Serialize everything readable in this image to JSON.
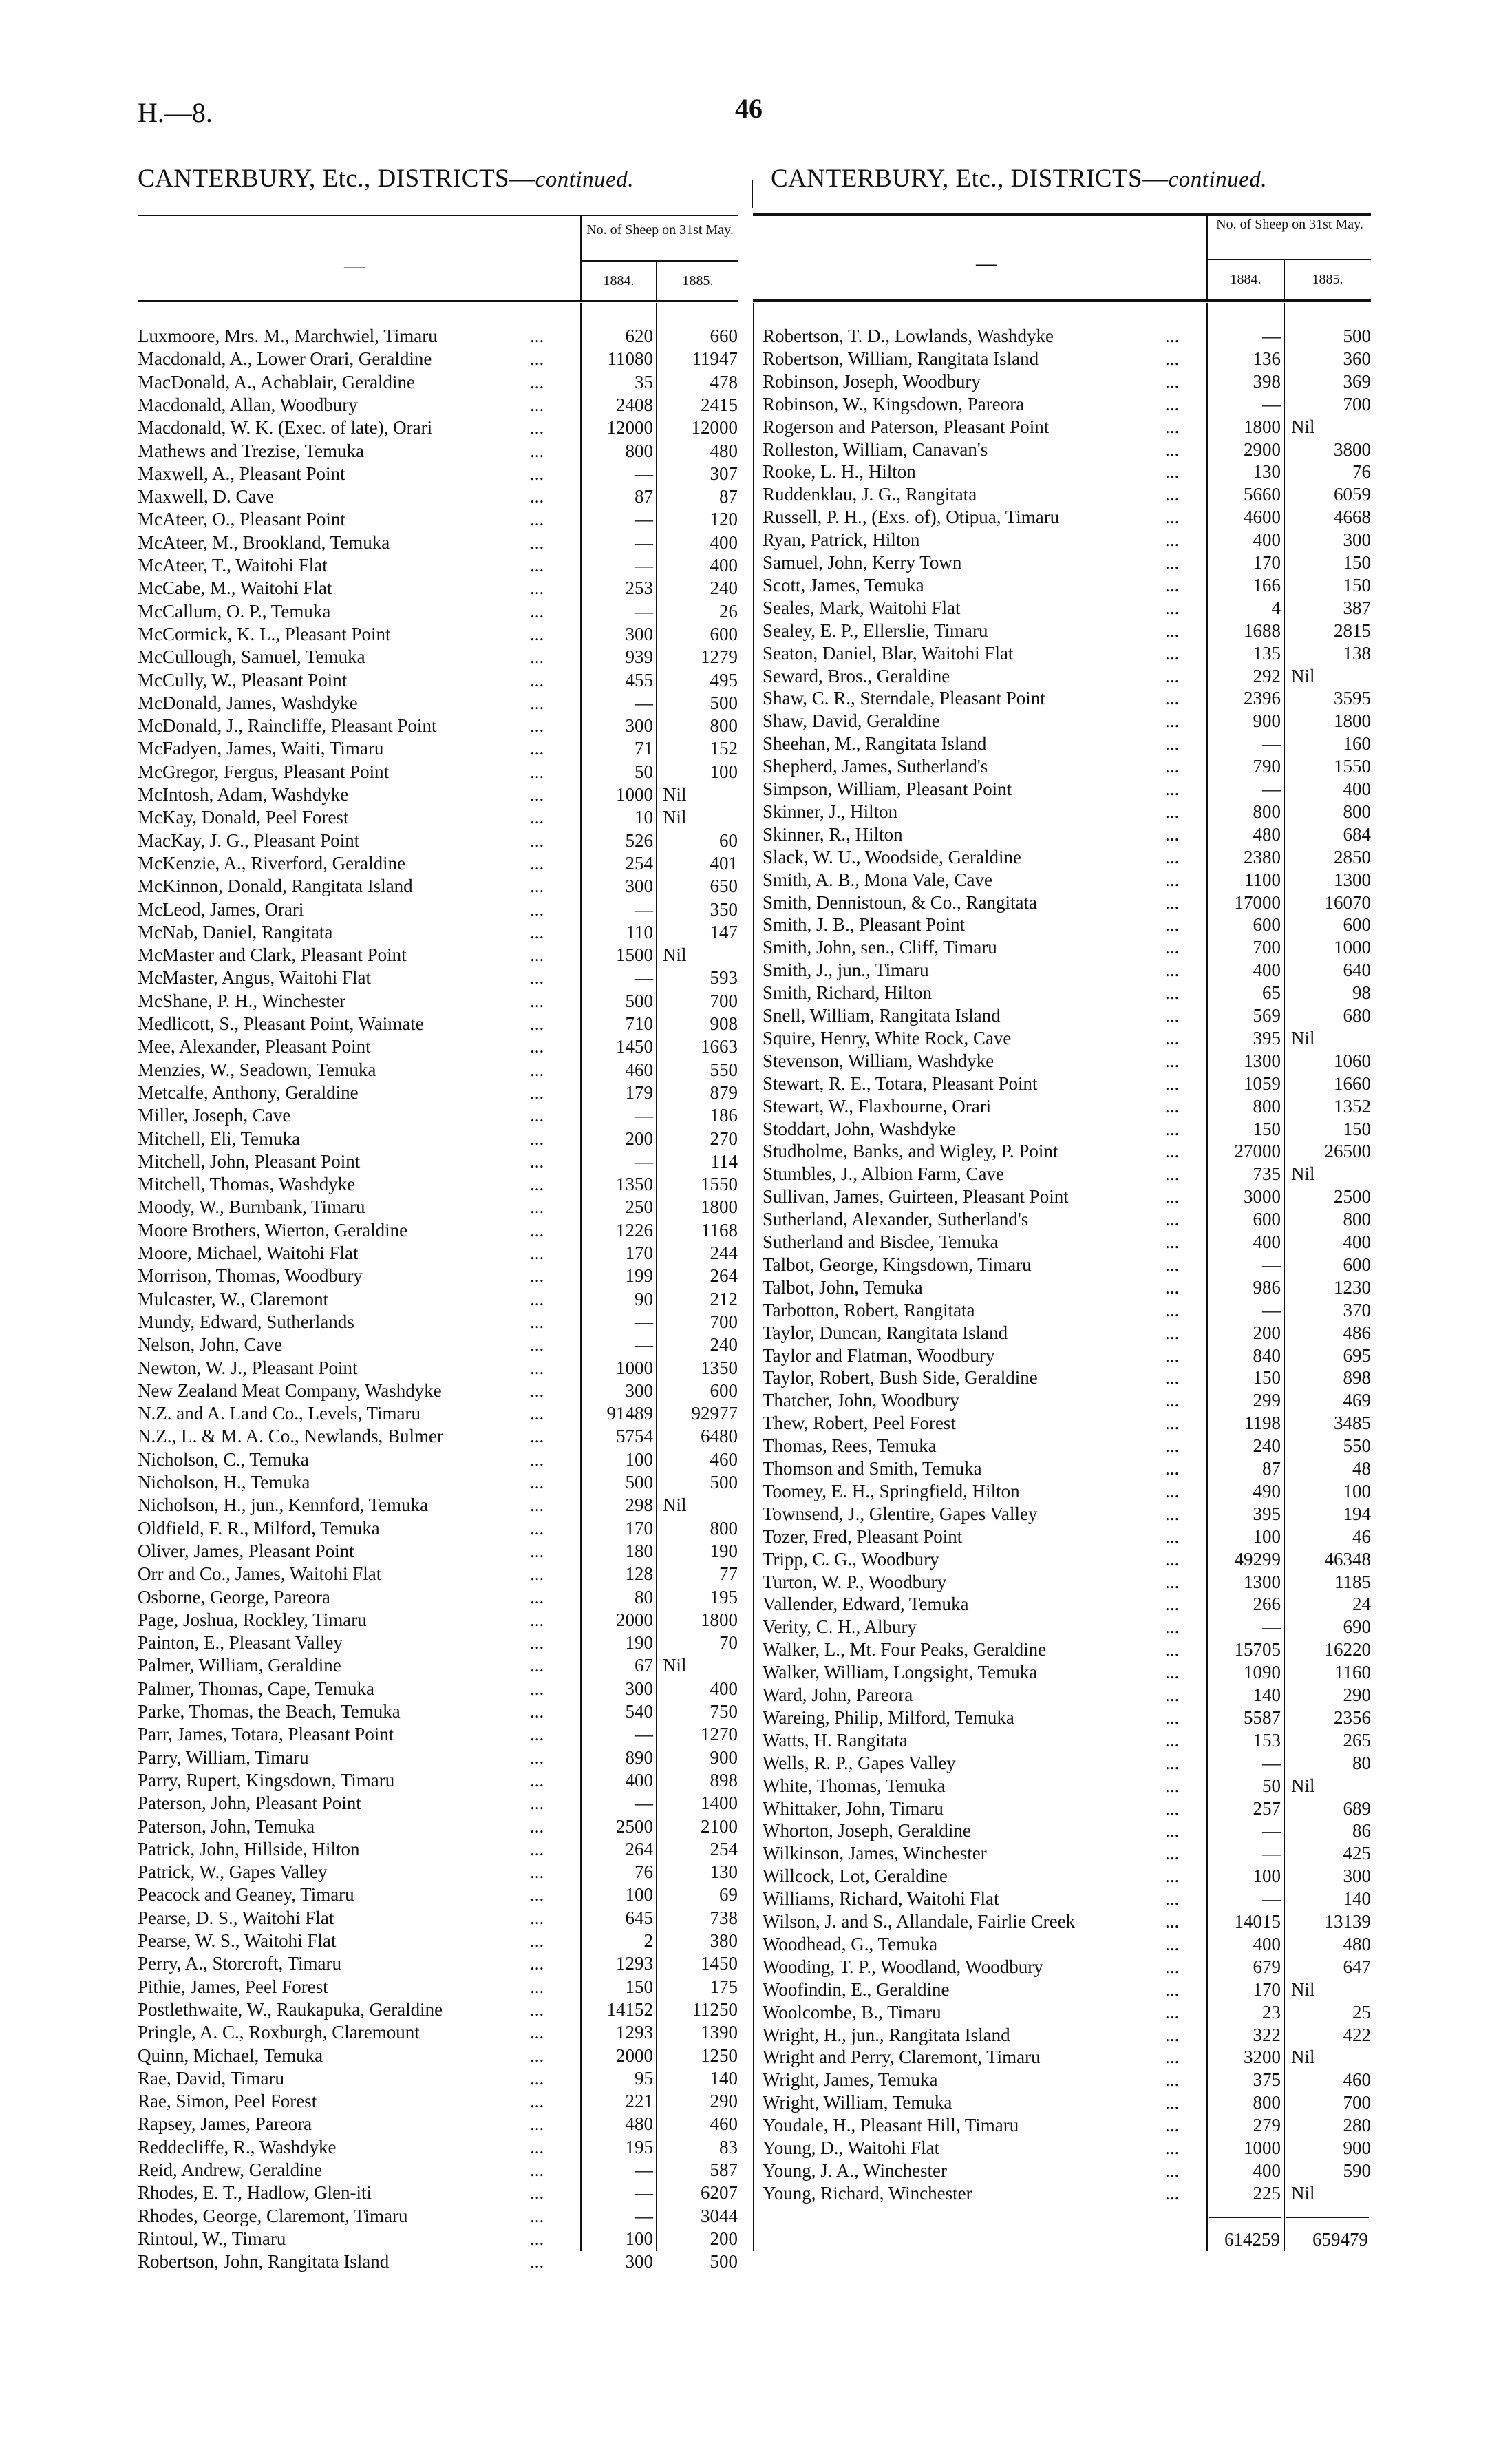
{
  "page": {
    "code": "H.—8.",
    "number": "46"
  },
  "left": {
    "title_main": "CANTERBURY, Etc., DISTRICTS—",
    "title_italic": "continued.",
    "header_blank": "—",
    "header_group": "No. of Sheep on 31st May.",
    "col_1884": "1884.",
    "col_1885": "1885.",
    "leader": "...",
    "rows": [
      [
        "Luxmoore, Mrs. M., Marchwiel, Timaru",
        "620",
        "660"
      ],
      [
        "Macdonald, A., Lower Orari, Geraldine",
        "11080",
        "11947"
      ],
      [
        "MacDonald, A., Achablair, Geraldine",
        "35",
        "478"
      ],
      [
        "Macdonald, Allan, Woodbury",
        "2408",
        "2415"
      ],
      [
        "Macdonald, W. K. (Exec. of late), Orari",
        "12000",
        "12000"
      ],
      [
        "Mathews and Trezise, Temuka",
        "800",
        "480"
      ],
      [
        "Maxwell, A., Pleasant Point",
        "—",
        "307"
      ],
      [
        "Maxwell, D. Cave",
        "87",
        "87"
      ],
      [
        "McAteer, O., Pleasant Point",
        "—",
        "120"
      ],
      [
        "McAteer, M., Brookland, Temuka",
        "—",
        "400"
      ],
      [
        "McAteer, T., Waitohi Flat",
        "—",
        "400"
      ],
      [
        "McCabe, M., Waitohi Flat",
        "253",
        "240"
      ],
      [
        "McCallum, O. P., Temuka",
        "—",
        "26"
      ],
      [
        "McCormick, K. L., Pleasant Point",
        "300",
        "600"
      ],
      [
        "McCullough, Samuel, Temuka",
        "939",
        "1279"
      ],
      [
        "McCully, W., Pleasant Point",
        "455",
        "495"
      ],
      [
        "McDonald, James, Washdyke",
        "—",
        "500"
      ],
      [
        "McDonald, J., Raincliffe, Pleasant Point",
        "300",
        "800"
      ],
      [
        "McFadyen, James, Waiti, Timaru",
        "71",
        "152"
      ],
      [
        "McGregor, Fergus, Pleasant Point",
        "50",
        "100"
      ],
      [
        "McIntosh, Adam, Washdyke",
        "1000",
        "Nil"
      ],
      [
        "McKay, Donald, Peel Forest",
        "10",
        "Nil"
      ],
      [
        "MacKay, J. G., Pleasant Point",
        "526",
        "60"
      ],
      [
        "McKenzie, A., Riverford, Geraldine",
        "254",
        "401"
      ],
      [
        "McKinnon, Donald, Rangitata Island",
        "300",
        "650"
      ],
      [
        "McLeod, James, Orari",
        "—",
        "350"
      ],
      [
        "McNab, Daniel, Rangitata",
        "110",
        "147"
      ],
      [
        "McMaster and Clark, Pleasant Point",
        "1500",
        "Nil"
      ],
      [
        "McMaster, Angus, Waitohi Flat",
        "—",
        "593"
      ],
      [
        "McShane, P. H., Winchester",
        "500",
        "700"
      ],
      [
        "Medlicott, S., Pleasant Point, Waimate",
        "710",
        "908"
      ],
      [
        "Mee, Alexander, Pleasant Point",
        "1450",
        "1663"
      ],
      [
        "Menzies, W., Seadown, Temuka",
        "460",
        "550"
      ],
      [
        "Metcalfe, Anthony, Geraldine",
        "179",
        "879"
      ],
      [
        "Miller, Joseph, Cave",
        "—",
        "186"
      ],
      [
        "Mitchell, Eli, Temuka",
        "200",
        "270"
      ],
      [
        "Mitchell, John, Pleasant Point",
        "—",
        "114"
      ],
      [
        "Mitchell, Thomas, Washdyke",
        "1350",
        "1550"
      ],
      [
        "Moody, W., Burnbank, Timaru",
        "250",
        "1800"
      ],
      [
        "Moore Brothers, Wierton, Geraldine",
        "1226",
        "1168"
      ],
      [
        "Moore, Michael, Waitohi Flat",
        "170",
        "244"
      ],
      [
        "Morrison, Thomas, Woodbury",
        "199",
        "264"
      ],
      [
        "Mulcaster, W., Claremont",
        "90",
        "212"
      ],
      [
        "Mundy, Edward, Sutherlands",
        "—",
        "700"
      ],
      [
        "Nelson, John, Cave",
        "—",
        "240"
      ],
      [
        "Newton, W. J., Pleasant Point",
        "1000",
        "1350"
      ],
      [
        "New Zealand Meat Company, Washdyke",
        "300",
        "600"
      ],
      [
        "N.Z. and A. Land Co., Levels, Timaru",
        "91489",
        "92977"
      ],
      [
        "N.Z., L. & M. A. Co., Newlands, Bulmer",
        "5754",
        "6480"
      ],
      [
        "Nicholson, C., Temuka",
        "100",
        "460"
      ],
      [
        "Nicholson, H., Temuka",
        "500",
        "500"
      ],
      [
        "Nicholson, H., jun., Kennford, Temuka",
        "298",
        "Nil"
      ],
      [
        "Oldfield, F. R., Milford, Temuka",
        "170",
        "800"
      ],
      [
        "Oliver, James, Pleasant Point",
        "180",
        "190"
      ],
      [
        "Orr and Co., James, Waitohi Flat",
        "128",
        "77"
      ],
      [
        "Osborne, George, Pareora",
        "80",
        "195"
      ],
      [
        "Page, Joshua, Rockley, Timaru",
        "2000",
        "1800"
      ],
      [
        "Painton, E., Pleasant Valley",
        "190",
        "70"
      ],
      [
        "Palmer, William, Geraldine",
        "67",
        "Nil"
      ],
      [
        "Palmer, Thomas, Cape, Temuka",
        "300",
        "400"
      ],
      [
        "Parke, Thomas, the Beach, Temuka",
        "540",
        "750"
      ],
      [
        "Parr, James, Totara, Pleasant Point",
        "—",
        "1270"
      ],
      [
        "Parry, William, Timaru",
        "890",
        "900"
      ],
      [
        "Parry, Rupert, Kingsdown, Timaru",
        "400",
        "898"
      ],
      [
        "Paterson, John, Pleasant Point",
        "—",
        "1400"
      ],
      [
        "Paterson, John, Temuka",
        "2500",
        "2100"
      ],
      [
        "Patrick, John, Hillside, Hilton",
        "264",
        "254"
      ],
      [
        "Patrick, W., Gapes Valley",
        "76",
        "130"
      ],
      [
        "Peacock and Geaney, Timaru",
        "100",
        "69"
      ],
      [
        "Pearse, D. S., Waitohi Flat",
        "645",
        "738"
      ],
      [
        "Pearse, W. S., Waitohi Flat",
        "2",
        "380"
      ],
      [
        "Perry, A., Storcroft, Timaru",
        "1293",
        "1450"
      ],
      [
        "Pithie, James, Peel Forest",
        "150",
        "175"
      ],
      [
        "Postlethwaite, W., Raukapuka, Geraldine",
        "14152",
        "11250"
      ],
      [
        "Pringle, A. C., Roxburgh, Claremount",
        "1293",
        "1390"
      ],
      [
        "Quinn, Michael, Temuka",
        "2000",
        "1250"
      ],
      [
        "Rae, David, Timaru",
        "95",
        "140"
      ],
      [
        "Rae, Simon, Peel Forest",
        "221",
        "290"
      ],
      [
        "Rapsey, James, Pareora",
        "480",
        "460"
      ],
      [
        "Reddecliffe, R., Washdyke",
        "195",
        "83"
      ],
      [
        "Reid, Andrew, Geraldine",
        "—",
        "587"
      ],
      [
        "Rhodes, E. T., Hadlow, Glen-iti",
        "—",
        "6207"
      ],
      [
        "Rhodes, George, Claremont, Timaru",
        "—",
        "3044"
      ],
      [
        "Rintoul, W., Timaru",
        "100",
        "200"
      ],
      [
        "Robertson, John, Rangitata Island",
        "300",
        "500"
      ]
    ]
  },
  "right": {
    "title_main": "CANTERBURY, Etc., DISTRICTS—",
    "title_italic": "continued.",
    "header_blank": "—",
    "header_group": "No. of Sheep on 31st May.",
    "col_1884": "1884.",
    "col_1885": "1885.",
    "leader": "...",
    "rows": [
      [
        "Robertson, T. D., Lowlands, Washdyke",
        "—",
        "500"
      ],
      [
        "Robertson, William, Rangitata Island",
        "136",
        "360"
      ],
      [
        "Robinson, Joseph, Woodbury",
        "398",
        "369"
      ],
      [
        "Robinson, W., Kingsdown, Pareora",
        "—",
        "700"
      ],
      [
        "Rogerson and Paterson, Pleasant Point",
        "1800",
        "Nil"
      ],
      [
        "Rolleston, William, Canavan's",
        "2900",
        "3800"
      ],
      [
        "Rooke, L. H., Hilton",
        "130",
        "76"
      ],
      [
        "Ruddenklau, J. G., Rangitata",
        "5660",
        "6059"
      ],
      [
        "Russell, P. H., (Exs. of), Otipua, Timaru",
        "4600",
        "4668"
      ],
      [
        "Ryan, Patrick, Hilton",
        "400",
        "300"
      ],
      [
        "Samuel, John, Kerry Town",
        "170",
        "150"
      ],
      [
        "Scott, James, Temuka",
        "166",
        "150"
      ],
      [
        "Seales, Mark, Waitohi Flat",
        "4",
        "387"
      ],
      [
        "Sealey, E. P., Ellerslie, Timaru",
        "1688",
        "2815"
      ],
      [
        "Seaton, Daniel, Blar, Waitohi Flat",
        "135",
        "138"
      ],
      [
        "Seward, Bros., Geraldine",
        "292",
        "Nil"
      ],
      [
        "Shaw, C. R., Sterndale, Pleasant Point",
        "2396",
        "3595"
      ],
      [
        "Shaw, David, Geraldine",
        "900",
        "1800"
      ],
      [
        "Sheehan, M., Rangitata Island",
        "—",
        "160"
      ],
      [
        "Shepherd, James, Sutherland's",
        "790",
        "1550"
      ],
      [
        "Simpson, William, Pleasant Point",
        "—",
        "400"
      ],
      [
        "Skinner, J., Hilton",
        "800",
        "800"
      ],
      [
        "Skinner, R., Hilton",
        "480",
        "684"
      ],
      [
        "Slack, W. U., Woodside, Geraldine",
        "2380",
        "2850"
      ],
      [
        "Smith, A. B., Mona Vale, Cave",
        "1100",
        "1300"
      ],
      [
        "Smith, Dennistoun, & Co., Rangitata",
        "17000",
        "16070"
      ],
      [
        "Smith, J. B., Pleasant Point",
        "600",
        "600"
      ],
      [
        "Smith, John, sen., Cliff, Timaru",
        "700",
        "1000"
      ],
      [
        "Smith, J., jun., Timaru",
        "400",
        "640"
      ],
      [
        "Smith, Richard, Hilton",
        "65",
        "98"
      ],
      [
        "Snell, William, Rangitata Island",
        "569",
        "680"
      ],
      [
        "Squire, Henry, White Rock, Cave",
        "395",
        "Nil"
      ],
      [
        "Stevenson, William, Washdyke",
        "1300",
        "1060"
      ],
      [
        "Stewart, R. E., Totara, Pleasant Point",
        "1059",
        "1660"
      ],
      [
        "Stewart, W., Flaxbourne, Orari",
        "800",
        "1352"
      ],
      [
        "Stoddart, John, Washdyke",
        "150",
        "150"
      ],
      [
        "Studholme, Banks, and Wigley, P. Point",
        "27000",
        "26500"
      ],
      [
        "Stumbles, J., Albion Farm, Cave",
        "735",
        "Nil"
      ],
      [
        "Sullivan, James, Guirteen, Pleasant Point",
        "3000",
        "2500"
      ],
      [
        "Sutherland, Alexander, Sutherland's",
        "600",
        "800"
      ],
      [
        "Sutherland and Bisdee, Temuka",
        "400",
        "400"
      ],
      [
        "Talbot, George, Kingsdown, Timaru",
        "—",
        "600"
      ],
      [
        "Talbot, John, Temuka",
        "986",
        "1230"
      ],
      [
        "Tarbotton, Robert, Rangitata",
        "—",
        "370"
      ],
      [
        "Taylor, Duncan, Rangitata Island",
        "200",
        "486"
      ],
      [
        "Taylor and Flatman, Woodbury",
        "840",
        "695"
      ],
      [
        "Taylor, Robert, Bush Side, Geraldine",
        "150",
        "898"
      ],
      [
        "Thatcher, John, Woodbury",
        "299",
        "469"
      ],
      [
        "Thew, Robert, Peel Forest",
        "1198",
        "3485"
      ],
      [
        "Thomas, Rees, Temuka",
        "240",
        "550"
      ],
      [
        "Thomson and Smith, Temuka",
        "87",
        "48"
      ],
      [
        "Toomey, E. H., Springfield, Hilton",
        "490",
        "100"
      ],
      [
        "Townsend, J., Glentire, Gapes Valley",
        "395",
        "194"
      ],
      [
        "Tozer, Fred, Pleasant Point",
        "100",
        "46"
      ],
      [
        "Tripp, C. G., Woodbury",
        "49299",
        "46348"
      ],
      [
        "Turton, W. P., Woodbury",
        "1300",
        "1185"
      ],
      [
        "Vallender, Edward, Temuka",
        "266",
        "24"
      ],
      [
        "Verity, C. H., Albury",
        "—",
        "690"
      ],
      [
        "Walker, L., Mt. Four Peaks, Geraldine",
        "15705",
        "16220"
      ],
      [
        "Walker, William, Longsight, Temuka",
        "1090",
        "1160"
      ],
      [
        "Ward, John, Pareora",
        "140",
        "290"
      ],
      [
        "Wareing, Philip, Milford, Temuka",
        "5587",
        "2356"
      ],
      [
        "Watts, H. Rangitata",
        "153",
        "265"
      ],
      [
        "Wells, R. P., Gapes Valley",
        "—",
        "80"
      ],
      [
        "White, Thomas, Temuka",
        "50",
        "Nil"
      ],
      [
        "Whittaker, John, Timaru",
        "257",
        "689"
      ],
      [
        "Whorton, Joseph, Geraldine",
        "—",
        "86"
      ],
      [
        "Wilkinson, James, Winchester",
        "—",
        "425"
      ],
      [
        "Willcock, Lot, Geraldine",
        "100",
        "300"
      ],
      [
        "Williams, Richard, Waitohi Flat",
        "—",
        "140"
      ],
      [
        "Wilson, J. and S., Allandale, Fairlie Creek",
        "14015",
        "13139"
      ],
      [
        "Woodhead, G., Temuka",
        "400",
        "480"
      ],
      [
        "Wooding, T. P., Woodland, Woodbury",
        "679",
        "647"
      ],
      [
        "Woofindin, E., Geraldine",
        "170",
        "Nil"
      ],
      [
        "Woolcombe, B., Timaru",
        "23",
        "25"
      ],
      [
        "Wright, H., jun., Rangitata Island",
        "322",
        "422"
      ],
      [
        "Wright and Perry, Claremont, Timaru",
        "3200",
        "Nil"
      ],
      [
        "Wright, James, Temuka",
        "375",
        "460"
      ],
      [
        "Wright, William, Temuka",
        "800",
        "700"
      ],
      [
        "Youdale, H., Pleasant Hill, Timaru",
        "279",
        "280"
      ],
      [
        "Young, D., Waitohi Flat",
        "1000",
        "900"
      ],
      [
        "Young, J. A., Winchester",
        "400",
        "590"
      ],
      [
        "Young, Richard, Winchester",
        "225",
        "Nil"
      ]
    ],
    "total_1884": "614259",
    "total_1885": "659479"
  }
}
